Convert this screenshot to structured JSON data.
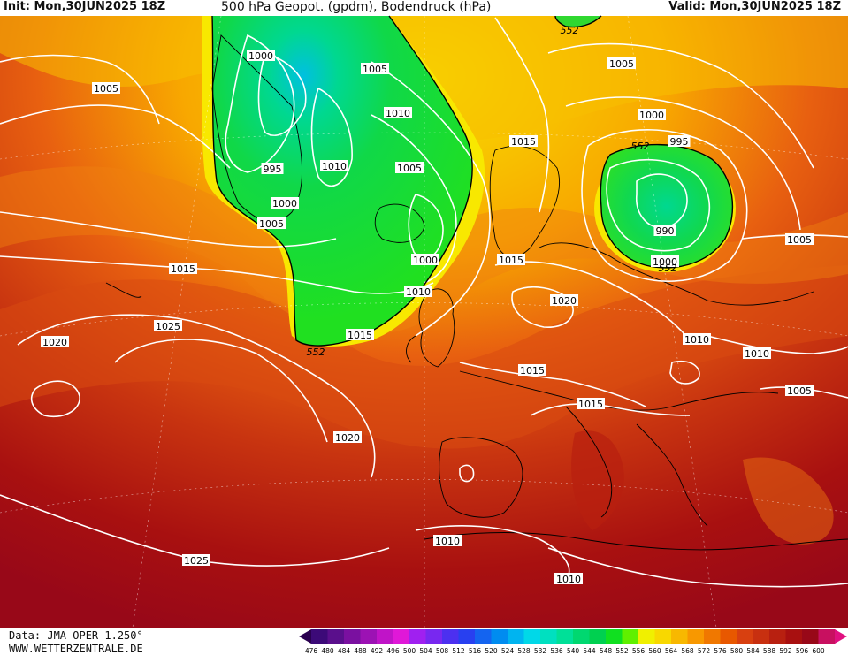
{
  "header": {
    "init": "Init: Mon,30JUN2025 18Z",
    "title": "500 hPa Geopot. (gpdm), Bodendruck (hPa)",
    "valid": "Valid: Mon,30JUN2025 18Z"
  },
  "footer": {
    "data_source": "Data: JMA OPER 1.250°",
    "website": "WWW.WETTERZENTRALE.DE"
  },
  "legend": {
    "values": [
      "476",
      "480",
      "484",
      "488",
      "492",
      "496",
      "500",
      "504",
      "508",
      "512",
      "516",
      "520",
      "524",
      "528",
      "532",
      "536",
      "540",
      "544",
      "548",
      "552",
      "556",
      "560",
      "564",
      "568",
      "572",
      "576",
      "580",
      "584",
      "588",
      "592",
      "596",
      "600"
    ],
    "colors": [
      "#3c0a78",
      "#5a0f8c",
      "#7a10a0",
      "#9c12b4",
      "#c014c8",
      "#e018d8",
      "#a020f0",
      "#7828f0",
      "#4c30f0",
      "#2840f0",
      "#1464f0",
      "#008cf0",
      "#00b4f0",
      "#00d8e8",
      "#00e0c0",
      "#00e098",
      "#00d870",
      "#00d050",
      "#10e020",
      "#60f000",
      "#f0f000",
      "#f8d800",
      "#f8b800",
      "#f89800",
      "#f07800",
      "#e85800",
      "#d84010",
      "#c83010",
      "#b82010",
      "#a81010",
      "#980818",
      "#c81060"
    ]
  },
  "isobar_labels": [
    {
      "text": "1005"
    },
    {
      "text": "1000"
    },
    {
      "text": "1005"
    },
    {
      "text": "1010"
    },
    {
      "text": "1010"
    },
    {
      "text": "995"
    },
    {
      "text": "1000"
    },
    {
      "text": "1005"
    },
    {
      "text": "1005"
    },
    {
      "text": "1000"
    },
    {
      "text": "1010"
    },
    {
      "text": "1015"
    },
    {
      "text": "1015"
    },
    {
      "text": "1025"
    },
    {
      "text": "1020"
    },
    {
      "text": "1015"
    },
    {
      "text": "1020"
    },
    {
      "text": "1025"
    },
    {
      "text": "1005"
    },
    {
      "text": "1000"
    },
    {
      "text": "995"
    },
    {
      "text": "990"
    },
    {
      "text": "1000"
    },
    {
      "text": "1015"
    },
    {
      "text": "1015"
    },
    {
      "text": "1020"
    },
    {
      "text": "1015"
    },
    {
      "text": "1015"
    },
    {
      "text": "1010"
    },
    {
      "text": "1010"
    },
    {
      "text": "1005"
    },
    {
      "text": "1005"
    },
    {
      "text": "1010"
    },
    {
      "text": "1010"
    }
  ],
  "contour_labels": [
    {
      "text": "552"
    },
    {
      "text": "552"
    },
    {
      "text": "552"
    },
    {
      "text": "552"
    }
  ]
}
